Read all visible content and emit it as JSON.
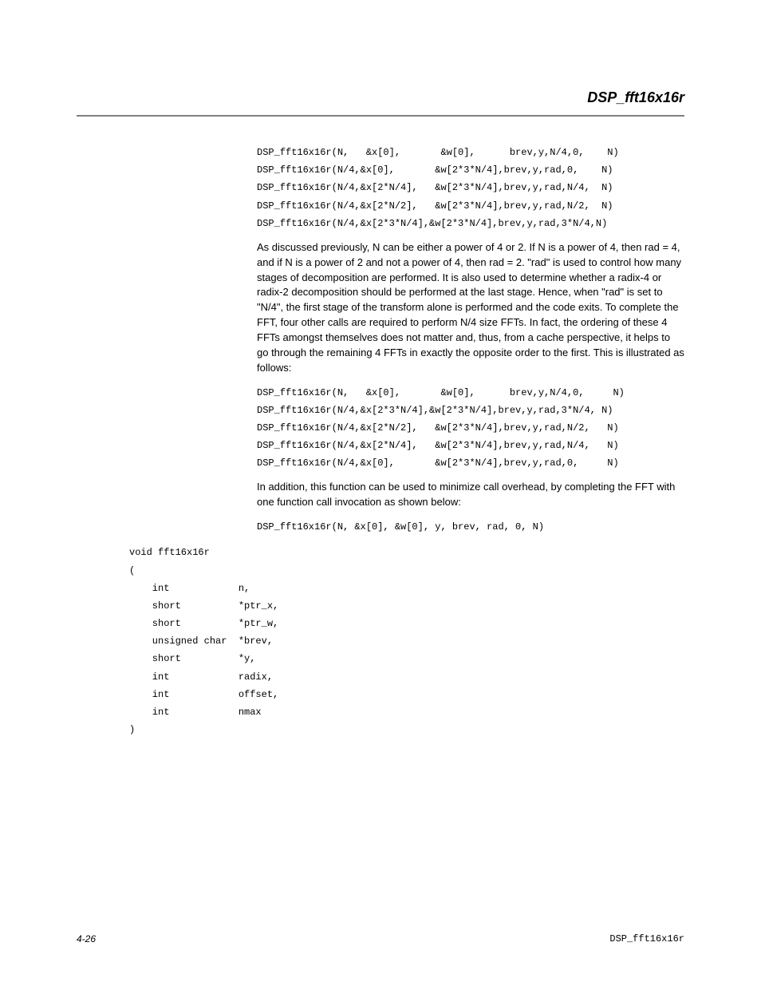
{
  "header": {
    "title": "DSP_fft16x16r"
  },
  "body": {
    "para1": "As discussed previously, N can be either a power of 4 or 2. If N is a power of 4, then rad = 4, and if N is a power of 2 and not a power of 4, then rad = 2. \"rad\" is used to control how many stages of decomposition are performed. It is also used to determine whether a radix-4 or radix-2 decomposition should be performed at the last stage. Hence, when \"rad\" is set to \"N/4\", the first stage of the transform alone is performed and the code exits. To complete the FFT, four other calls are required to perform N/4 size FFTs. In fact, the ordering of these 4 FFTs amongst themselves does not matter and, thus, from a cache perspective, it helps to go through the remaining 4 FFTs in exactly the opposite order to the first. This is illustrated as follows:",
    "para2": "In addition, this function can be used to minimize call overhead, by completing the FFT with one function call invocation as shown below:",
    "code1": [
      "DSP_fft16x16r(N,   &x[0],       &w[0],      brev,y,N/4,0,    N)",
      "DSP_fft16x16r(N/4,&x[0],       &w[2*3*N/4],brev,y,rad,0,    N)",
      "DSP_fft16x16r(N/4,&x[2*N/4],   &w[2*3*N/4],brev,y,rad,N/4,  N)",
      "DSP_fft16x16r(N/4,&x[2*N/2],   &w[2*3*N/4],brev,y,rad,N/2,  N)",
      "DSP_fft16x16r(N/4,&x[2*3*N/4],&w[2*3*N/4],brev,y,rad,3*N/4,N)"
    ],
    "code2": [
      "DSP_fft16x16r(N,   &x[0],       &w[0],      brev,y,N/4,0,     N)",
      "DSP_fft16x16r(N/4,&x[2*3*N/4],&w[2*3*N/4],brev,y,rad,3*N/4, N)",
      "DSP_fft16x16r(N/4,&x[2*N/2],   &w[2*3*N/4],brev,y,rad,N/2,   N)",
      "DSP_fft16x16r(N/4,&x[2*N/4],   &w[2*3*N/4],brev,y,rad,N/4,   N)",
      "DSP_fft16x16r(N/4,&x[0],       &w[2*3*N/4],brev,y,rad,0,     N)"
    ],
    "code3": [
      "DSP_fft16x16r(N, &x[0], &w[0], y, brev, rad, 0, N)"
    ],
    "code4": [
      "void fft16x16r",
      "(",
      "    int            n,",
      "    short          *ptr_x,",
      "    short          *ptr_w,",
      "    unsigned char  *brev,",
      "    short          *y,",
      "    int            radix,",
      "    int            offset,",
      "    int            nmax",
      ")"
    ]
  },
  "footer": {
    "left": "4-26",
    "right_label": "DSP_fft16x16r"
  }
}
